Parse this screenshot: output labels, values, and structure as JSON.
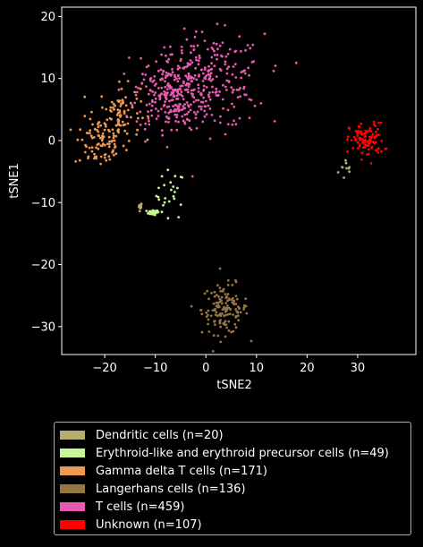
{
  "chart_data": {
    "type": "scatter",
    "title": "",
    "xlabel": "tSNE2",
    "ylabel": "tSNE1",
    "xlim": [
      -28.5,
      41.5
    ],
    "ylim": [
      -34.5,
      21.5
    ],
    "xticks": [
      -20,
      -10,
      0,
      10,
      20,
      30
    ],
    "yticks": [
      -30,
      -20,
      -10,
      0,
      10,
      20
    ],
    "xtick_labels": [
      "−20",
      "−10",
      "0",
      "10",
      "20",
      "30"
    ],
    "ytick_labels": [
      "−30",
      "−20",
      "−10",
      "0",
      "10",
      "20"
    ],
    "grid": false,
    "legend_position": "below",
    "series": [
      {
        "name": "Dendritic cells (n=20)",
        "color": "#b4ad6e",
        "count": 20,
        "clusters": [
          {
            "cx": 28.0,
            "cy": -4.6,
            "sx": 0.9,
            "sy": 1.0
          },
          {
            "cx": -13.0,
            "cy": -10.6,
            "sx": 0.2,
            "sy": 0.3
          }
        ]
      },
      {
        "name": "Erythroid-like and erythroid precursor cells (n=49)",
        "color": "#c8f59a",
        "count": 49,
        "clusters": [
          {
            "cx": -7.0,
            "cy": -8.8,
            "sx": 1.4,
            "sy": 2.0
          },
          {
            "cx": -10.5,
            "cy": -11.6,
            "sx": 0.6,
            "sy": 0.2
          }
        ]
      },
      {
        "name": "Gamma delta T cells (n=171)",
        "color": "#ee9850",
        "count": 171,
        "clusters": [
          {
            "cx": -21.0,
            "cy": -0.4,
            "sx": 2.5,
            "sy": 2.0
          },
          {
            "cx": -17.0,
            "cy": 4.5,
            "sx": 2.0,
            "sy": 2.2
          }
        ]
      },
      {
        "name": "Langerhans cells (n=136)",
        "color": "#957541",
        "count": 136,
        "clusters": [
          {
            "cx": 3.8,
            "cy": -27.2,
            "sx": 2.3,
            "sy": 2.0
          }
        ]
      },
      {
        "name": "T cells (n=459)",
        "color": "#e75ab0",
        "count": 459,
        "clusters": [
          {
            "cx": 0.5,
            "cy": 9.5,
            "sx": 5.5,
            "sy": 3.8
          },
          {
            "cx": -7.0,
            "cy": 7.5,
            "sx": 3.5,
            "sy": 3.0
          }
        ]
      },
      {
        "name": "Unknown (n=107)",
        "color": "#ff0000",
        "count": 107,
        "clusters": [
          {
            "cx": 31.8,
            "cy": 0.0,
            "sx": 1.7,
            "sy": 1.4
          }
        ]
      }
    ]
  }
}
